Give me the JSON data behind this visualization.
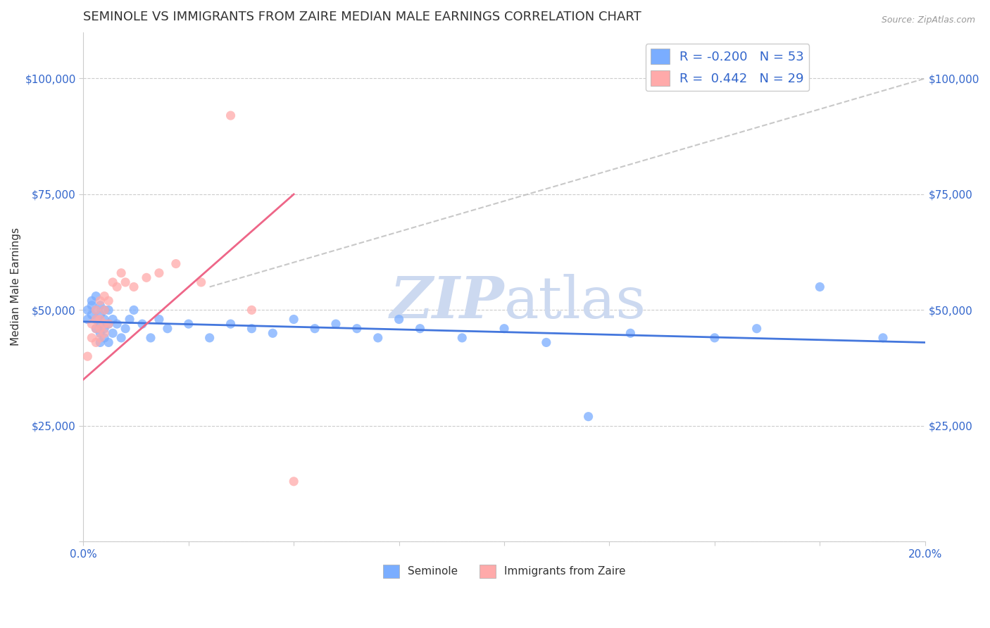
{
  "title": "SEMINOLE VS IMMIGRANTS FROM ZAIRE MEDIAN MALE EARNINGS CORRELATION CHART",
  "source_text": "Source: ZipAtlas.com",
  "ylabel": "Median Male Earnings",
  "xlim": [
    0.0,
    0.2
  ],
  "ylim": [
    0,
    110000
  ],
  "yticks": [
    0,
    25000,
    50000,
    75000,
    100000
  ],
  "ytick_labels": [
    "",
    "$25,000",
    "$50,000",
    "$75,000",
    "$100,000"
  ],
  "background_color": "#ffffff",
  "grid_color": "#cccccc",
  "seminole_color": "#7aadff",
  "zaire_color": "#ffaaaa",
  "seminole_line_color": "#4477dd",
  "zaire_line_color": "#ee6688",
  "ref_line_color": "#bbbbbb",
  "watermark_color": "#ccd9f0",
  "legend_R_seminole": "-0.200",
  "legend_N_seminole": "53",
  "legend_R_zaire": "0.442",
  "legend_N_zaire": "29",
  "title_fontsize": 13,
  "axis_label_fontsize": 11,
  "tick_fontsize": 11,
  "legend_fontsize": 13,
  "seminole_x": [
    0.001,
    0.001,
    0.002,
    0.002,
    0.002,
    0.003,
    0.003,
    0.003,
    0.003,
    0.004,
    0.004,
    0.004,
    0.004,
    0.004,
    0.005,
    0.005,
    0.005,
    0.005,
    0.006,
    0.006,
    0.006,
    0.007,
    0.007,
    0.008,
    0.009,
    0.01,
    0.011,
    0.012,
    0.014,
    0.016,
    0.018,
    0.02,
    0.025,
    0.03,
    0.035,
    0.04,
    0.045,
    0.05,
    0.055,
    0.06,
    0.065,
    0.07,
    0.075,
    0.08,
    0.09,
    0.1,
    0.11,
    0.12,
    0.13,
    0.15,
    0.16,
    0.175,
    0.19
  ],
  "seminole_y": [
    50000,
    48000,
    52000,
    49000,
    51000,
    46000,
    48000,
    50000,
    53000,
    45000,
    47000,
    49000,
    51000,
    43000,
    46000,
    48000,
    50000,
    44000,
    47000,
    43000,
    50000,
    48000,
    45000,
    47000,
    44000,
    46000,
    48000,
    50000,
    47000,
    44000,
    48000,
    46000,
    47000,
    44000,
    47000,
    46000,
    45000,
    48000,
    46000,
    47000,
    46000,
    44000,
    48000,
    46000,
    44000,
    46000,
    43000,
    27000,
    45000,
    44000,
    46000,
    55000,
    44000
  ],
  "zaire_x": [
    0.001,
    0.002,
    0.002,
    0.003,
    0.003,
    0.003,
    0.003,
    0.004,
    0.004,
    0.004,
    0.004,
    0.005,
    0.005,
    0.005,
    0.005,
    0.006,
    0.006,
    0.007,
    0.008,
    0.009,
    0.01,
    0.012,
    0.015,
    0.018,
    0.022,
    0.028,
    0.035,
    0.04,
    0.05
  ],
  "zaire_y": [
    40000,
    44000,
    47000,
    43000,
    46000,
    48000,
    50000,
    44000,
    46000,
    48000,
    52000,
    45000,
    47000,
    50000,
    53000,
    47000,
    52000,
    56000,
    55000,
    58000,
    56000,
    55000,
    57000,
    58000,
    60000,
    56000,
    92000,
    50000,
    13000
  ],
  "seminole_line_x": [
    0.0,
    0.2
  ],
  "seminole_line_y": [
    47500,
    43000
  ],
  "zaire_line_x": [
    0.0,
    0.05
  ],
  "zaire_line_y": [
    35000,
    75000
  ],
  "ref_line_x": [
    0.03,
    0.2
  ],
  "ref_line_y": [
    55000,
    100000
  ]
}
